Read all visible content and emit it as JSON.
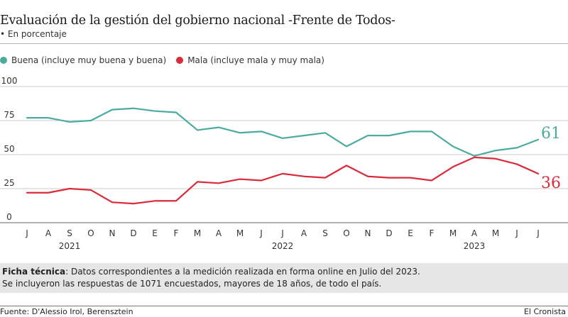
{
  "header": {
    "title": "Evaluación de la gestión del gobierno nacional -Frente de Todos-",
    "subtitle": "• En porcentaje"
  },
  "colors": {
    "buena": "#4bab9e",
    "mala": "#d92b3a",
    "grid": "#cccccc",
    "axis": "#9a9a9a"
  },
  "chart_data": {
    "type": "line",
    "title": "Evaluación de la gestión del gobierno nacional -Frente de Todos-",
    "subtitle": "En porcentaje",
    "xlabel": "",
    "ylabel": "",
    "ylim": [
      0,
      100
    ],
    "yticks": [
      0,
      25,
      50,
      75,
      100
    ],
    "grid": true,
    "legend_position": "top-left",
    "x": [
      "J",
      "A",
      "S",
      "O",
      "N",
      "D",
      "E",
      "F",
      "M",
      "A",
      "M",
      "J",
      "J",
      "A",
      "S",
      "O",
      "N",
      "D",
      "E",
      "F",
      "M",
      "A",
      "M",
      "J",
      "J"
    ],
    "year_labels": [
      {
        "label": "2021",
        "index": 2
      },
      {
        "label": "2022",
        "index": 12
      },
      {
        "label": "2023",
        "index": 21
      }
    ],
    "series": [
      {
        "name": "Buena (incluye muy buena y buena)",
        "key": "buena",
        "values": [
          77,
          77,
          74,
          75,
          83,
          84,
          82,
          81,
          68,
          70,
          66,
          67,
          62,
          64,
          66,
          56,
          64,
          64,
          67,
          67,
          56,
          49,
          53,
          55,
          61
        ],
        "end_label": "61"
      },
      {
        "name": "Mala (incluye mala y muy mala)",
        "key": "mala",
        "values": [
          22,
          22,
          25,
          24,
          15,
          14,
          16,
          16,
          30,
          29,
          32,
          31,
          36,
          34,
          33,
          42,
          34,
          33,
          33,
          31,
          41,
          48,
          47,
          43,
          36
        ],
        "end_label": "36"
      }
    ]
  },
  "ficha": {
    "label": "Ficha técnica",
    "line1": ": Datos correspondientes a la medición realizada en forma online en Julio del 2023.",
    "line2": "Se incluyeron las respuestas de 1071 encuestados, mayores de 18 años, de todo el país."
  },
  "footer": {
    "source": "Fuente: D'Alessio Irol, Berensztein",
    "brand": "El Cronista"
  }
}
